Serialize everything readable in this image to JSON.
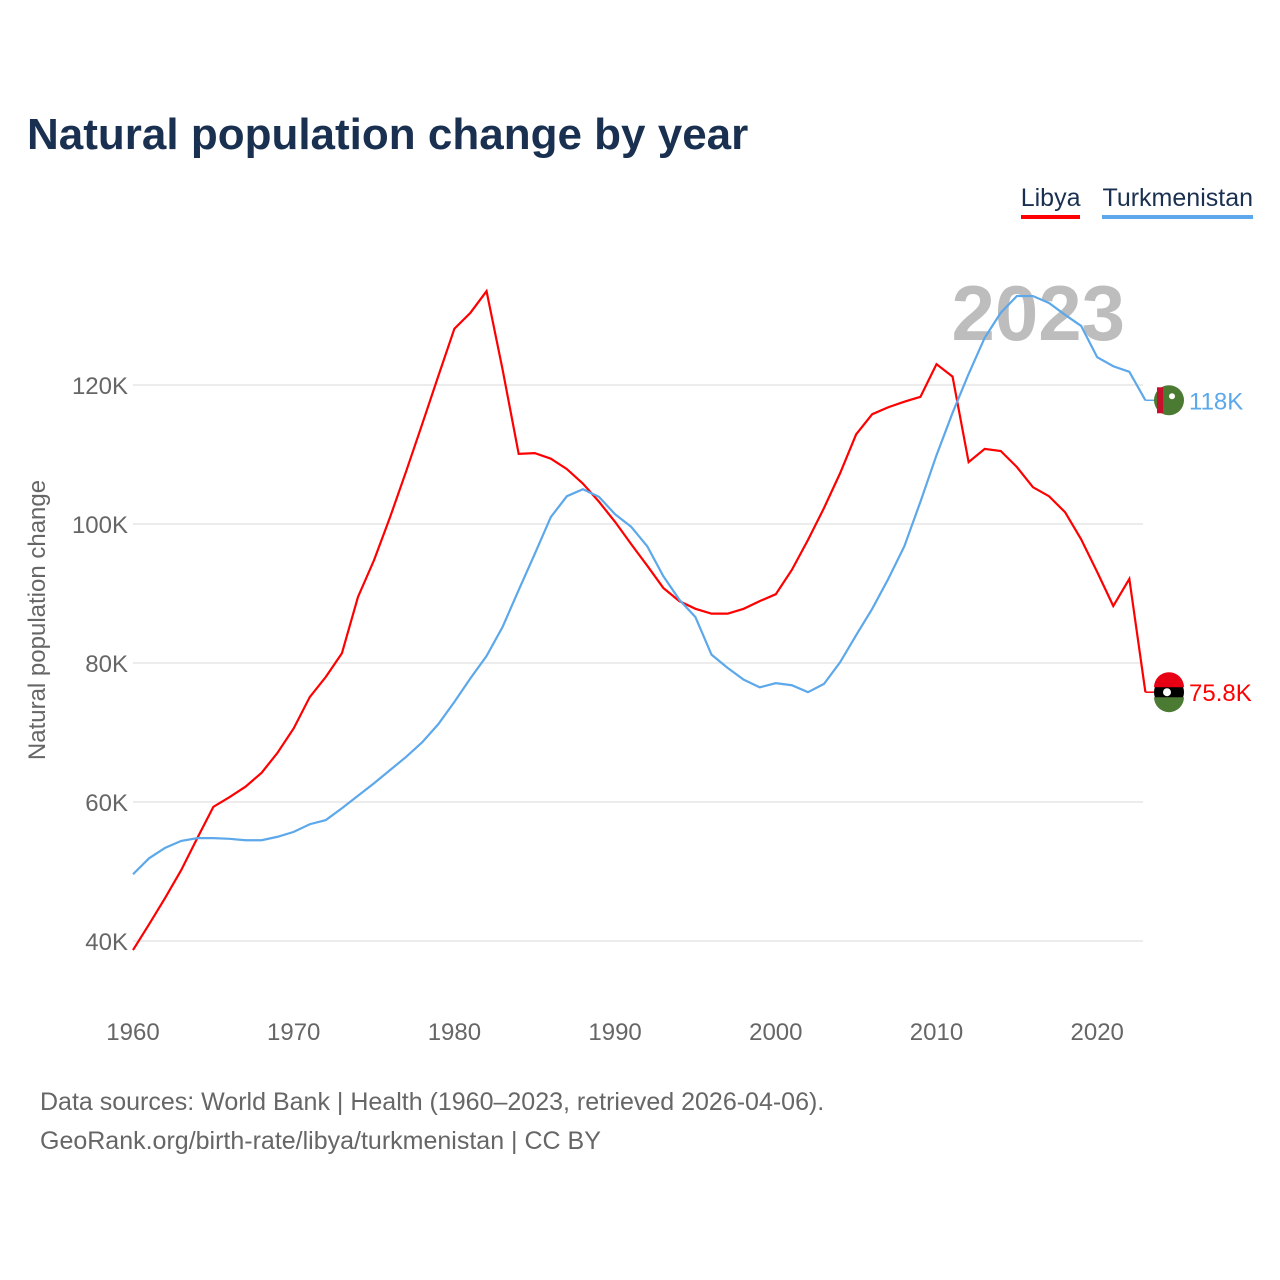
{
  "chart_data": {
    "type": "line",
    "title": "Natural population change by year",
    "xlabel": "",
    "ylabel": "Natural population change",
    "xlim": [
      1960,
      2023
    ],
    "ylim": [
      30000,
      140000
    ],
    "grid": true,
    "legend_placement": "top-right",
    "watermark_year": "2023",
    "x_ticks": [
      1960,
      1970,
      1980,
      1990,
      2000,
      2010,
      2020
    ],
    "y_ticks": [
      {
        "v": 40000,
        "label": "40K"
      },
      {
        "v": 60000,
        "label": "60K"
      },
      {
        "v": 80000,
        "label": "80K"
      },
      {
        "v": 100000,
        "label": "100K"
      },
      {
        "v": 120000,
        "label": "120K"
      }
    ],
    "x": [
      1960,
      1961,
      1962,
      1963,
      1964,
      1965,
      1966,
      1967,
      1968,
      1969,
      1970,
      1971,
      1972,
      1973,
      1974,
      1975,
      1976,
      1977,
      1978,
      1979,
      1980,
      1981,
      1982,
      1983,
      1984,
      1985,
      1986,
      1987,
      1988,
      1989,
      1990,
      1991,
      1992,
      1993,
      1994,
      1995,
      1996,
      1997,
      1998,
      1999,
      2000,
      2001,
      2002,
      2003,
      2004,
      2005,
      2006,
      2007,
      2008,
      2009,
      2010,
      2011,
      2012,
      2013,
      2014,
      2015,
      2016,
      2017,
      2018,
      2019,
      2020,
      2021,
      2022,
      2023
    ],
    "series": [
      {
        "name": "Libya",
        "color": "#ff0000",
        "end_label": "75.8K",
        "flag": "libya-flag-icon",
        "values": [
          38700,
          42400,
          46200,
          50200,
          54800,
          59300,
          60700,
          62200,
          64200,
          67100,
          70600,
          75100,
          78000,
          81400,
          89500,
          94800,
          101000,
          107600,
          114400,
          121300,
          128100,
          130400,
          133500,
          122200,
          110100,
          110200,
          109400,
          107900,
          105800,
          103200,
          100300,
          97100,
          94000,
          90800,
          88900,
          87800,
          87100,
          87100,
          87800,
          88900,
          89900,
          93400,
          97700,
          102300,
          107300,
          112900,
          115800,
          116800,
          117600,
          118300,
          123000,
          121200,
          108900,
          110800,
          110500,
          108200,
          105300,
          104000,
          101700,
          97800,
          93100,
          88200,
          92100,
          75800
        ]
      },
      {
        "name": "Turkmenistan",
        "color": "#5ca8ea",
        "end_label": "118K",
        "flag": "turkmenistan-flag-icon",
        "values": [
          49600,
          51900,
          53400,
          54400,
          54800,
          54800,
          54700,
          54500,
          54500,
          55000,
          55700,
          56800,
          57400,
          59100,
          60900,
          62700,
          64600,
          66500,
          68600,
          71200,
          74400,
          77800,
          81000,
          85200,
          90500,
          95700,
          101000,
          104000,
          105000,
          103900,
          101400,
          99600,
          96800,
          92500,
          89100,
          86600,
          81200,
          79300,
          77600,
          76500,
          77100,
          76800,
          75800,
          77000,
          80100,
          84000,
          87800,
          92100,
          96800,
          103200,
          109900,
          116000,
          121600,
          126800,
          130400,
          132800,
          132800,
          131800,
          130100,
          128500,
          124000,
          122700,
          121900,
          117800
        ]
      }
    ]
  },
  "footer": {
    "sources": "Data sources: World Bank | Health (1960–2023, retrieved 2026-04-06).",
    "credit": "GeoRank.org/birth-rate/libya/turkmenistan | CC BY"
  }
}
